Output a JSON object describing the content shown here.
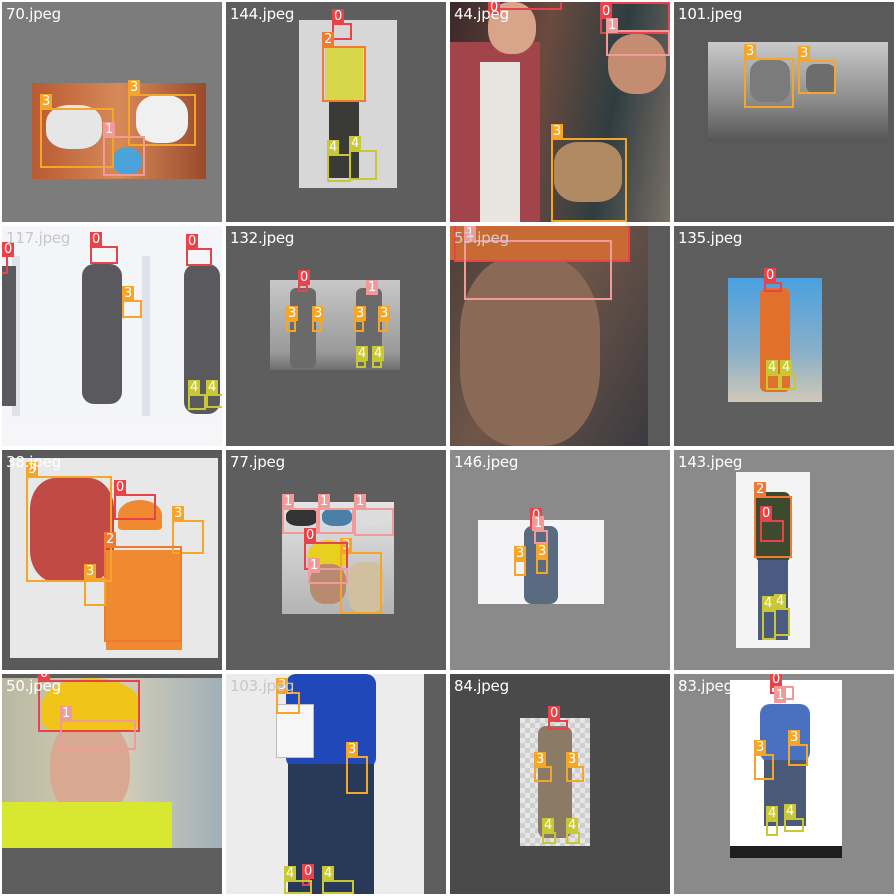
{
  "palette": {
    "0": "#e8424a",
    "1": "#f29a9a",
    "2": "#f07a32",
    "3": "#f5a629",
    "4": "#c8c834"
  },
  "tiles": [
    {
      "file": "70.jpeg",
      "labels": [
        "3",
        "3",
        "1"
      ]
    },
    {
      "file": "144.jpeg",
      "labels": [
        "0",
        "2",
        "4",
        "4"
      ]
    },
    {
      "file": "44.jpeg",
      "labels": [
        "0",
        "0",
        "1",
        "3"
      ]
    },
    {
      "file": "101.jpeg",
      "labels": [
        "3",
        "3"
      ]
    },
    {
      "file": "117.jpeg",
      "labels": [
        "0",
        "0",
        "0",
        "3",
        "4",
        "4"
      ]
    },
    {
      "file": "132.jpeg",
      "labels": [
        "0",
        "1",
        "3",
        "3",
        "3",
        "3",
        "4",
        "4"
      ]
    },
    {
      "file": "53.jpeg",
      "labels": [
        "0",
        "1"
      ]
    },
    {
      "file": "135.jpeg",
      "labels": [
        "0",
        "4",
        "4"
      ]
    },
    {
      "file": "38.jpeg",
      "labels": [
        "3",
        "0",
        "3",
        "2",
        "3"
      ]
    },
    {
      "file": "77.jpeg",
      "labels": [
        "1",
        "1",
        "1",
        "3",
        "0",
        "1"
      ]
    },
    {
      "file": "146.jpeg",
      "labels": [
        "0",
        "1",
        "3",
        "3"
      ]
    },
    {
      "file": "143.jpeg",
      "labels": [
        "2",
        "0",
        "4",
        "4"
      ]
    },
    {
      "file": "50.jpeg",
      "labels": [
        "0",
        "1"
      ]
    },
    {
      "file": "103.jpeg",
      "labels": [
        "3",
        "3",
        "0",
        "4",
        "4"
      ]
    },
    {
      "file": "84.jpeg",
      "labels": [
        "0",
        "3",
        "3",
        "4",
        "4"
      ]
    },
    {
      "file": "83.jpeg",
      "labels": [
        "0",
        "1",
        "3",
        "3",
        "4",
        "4"
      ]
    }
  ]
}
